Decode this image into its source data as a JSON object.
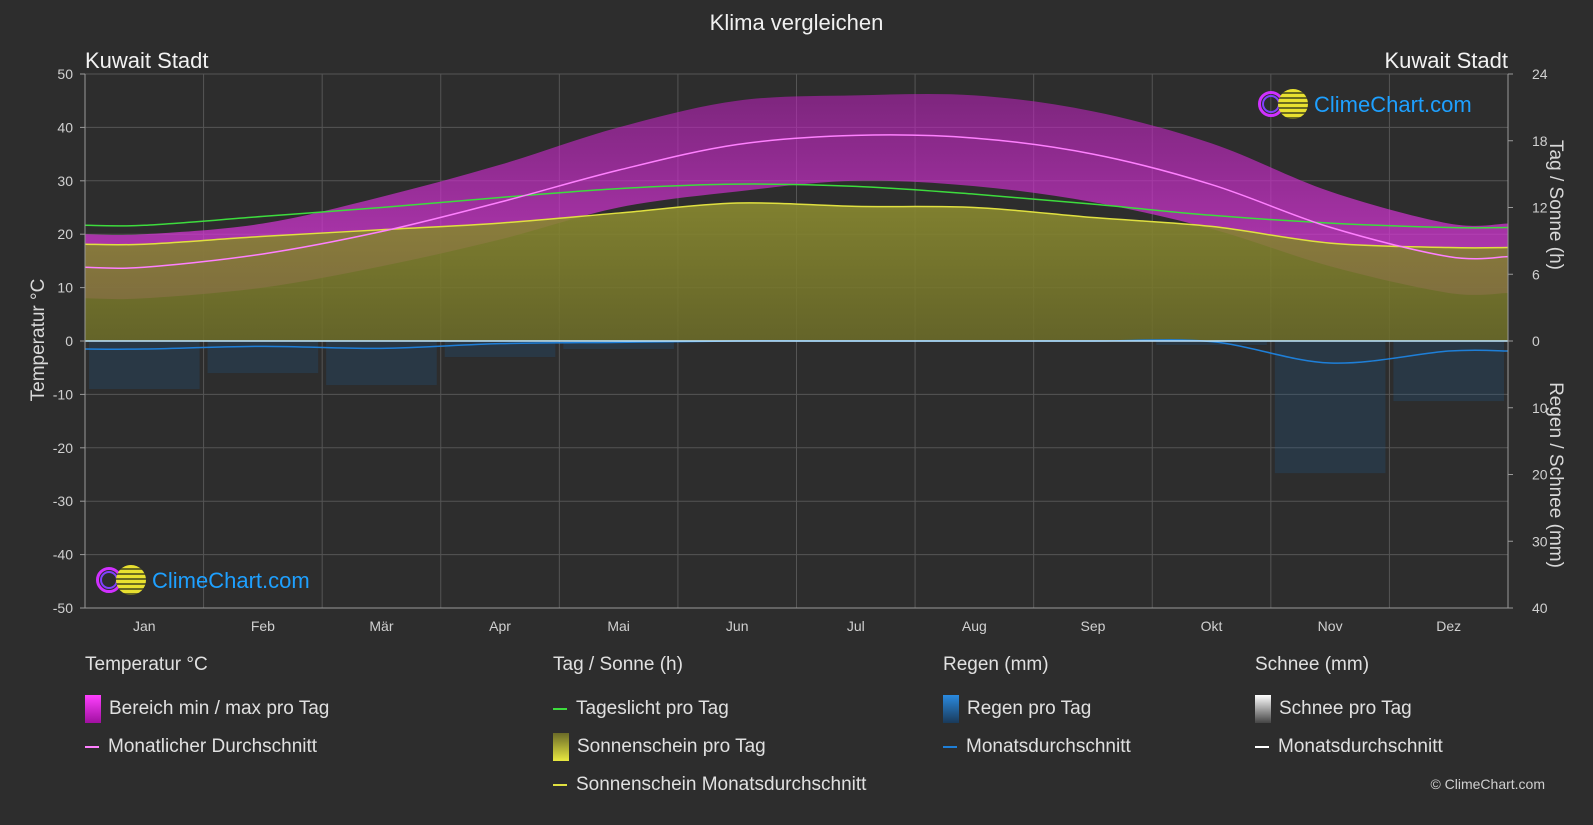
{
  "title": "Klima vergleichen",
  "location_left": "Kuwait Stadt",
  "location_right": "Kuwait Stadt",
  "logo_text": "ClimeChart.com",
  "copyright": "© ClimeChart.com",
  "chart_data": {
    "type": "area",
    "categories": [
      "Jan",
      "Feb",
      "Mär",
      "Apr",
      "Mai",
      "Jun",
      "Jul",
      "Aug",
      "Sep",
      "Okt",
      "Nov",
      "Dez"
    ],
    "y_left": {
      "label": "Temperatur °C",
      "ticks": [
        "50",
        "40",
        "30",
        "20",
        "10",
        "0",
        "-10",
        "-20",
        "-30",
        "-40",
        "-50"
      ],
      "range": [
        -50,
        50
      ]
    },
    "y_right_top": {
      "label": "Tag / Sonne (h)",
      "ticks": [
        "24",
        "18",
        "12",
        "6",
        "0"
      ],
      "range": [
        0,
        24
      ]
    },
    "y_right_bottom": {
      "label": "Regen / Schnee (mm)",
      "ticks": [
        "0",
        "10",
        "20",
        "30",
        "40"
      ],
      "range": [
        0,
        40
      ]
    },
    "grid": true,
    "series": [
      {
        "name": "Tageslicht pro Tag",
        "unit": "h",
        "values": [
          10.4,
          11.2,
          12.0,
          12.9,
          13.7,
          14.1,
          13.9,
          13.2,
          12.3,
          11.3,
          10.6,
          10.2
        ]
      },
      {
        "name": "Sonnenschein Monatsdurchschnitt",
        "unit": "h",
        "values": [
          8.7,
          9.4,
          10.0,
          10.6,
          11.5,
          12.4,
          12.1,
          12.0,
          11.1,
          10.3,
          8.8,
          8.4
        ]
      },
      {
        "name": "Monatlicher Durchschnitt",
        "unit": "°C",
        "values": [
          13.8,
          16.3,
          20.5,
          26.0,
          32.0,
          36.8,
          38.5,
          38.0,
          35.0,
          29.3,
          21.3,
          15.8
        ]
      },
      {
        "name": "Bereich min / max pro Tag",
        "unit": "°C",
        "min": [
          8,
          10,
          14,
          19,
          25,
          28,
          30,
          29,
          26,
          21,
          14,
          9
        ],
        "max": [
          20,
          22,
          27,
          33,
          40,
          45,
          46,
          46,
          43,
          37,
          28,
          22
        ]
      },
      {
        "name": "Regen Monatsdurchschnitt",
        "unit": "mm",
        "values": [
          1.2,
          0.8,
          1.1,
          0.4,
          0.2,
          0.0,
          0.0,
          0.0,
          0.0,
          0.1,
          3.3,
          1.5
        ]
      }
    ]
  },
  "legend": {
    "temp": {
      "title": "Temperatur °C",
      "items": [
        "Bereich min / max pro Tag",
        "Monatlicher Durchschnitt"
      ]
    },
    "sun": {
      "title": "Tag / Sonne (h)",
      "items": [
        "Tageslicht pro Tag",
        "Sonnenschein pro Tag",
        "Sonnenschein Monatsdurchschnitt"
      ]
    },
    "rain": {
      "title": "Regen (mm)",
      "items": [
        "Regen pro Tag",
        "Monatsdurchschnitt"
      ]
    },
    "snow": {
      "title": "Schnee (mm)",
      "items": [
        "Schnee pro Tag",
        "Monatsdurchschnitt"
      ]
    }
  },
  "colors": {
    "daylight": "#3ddc3d",
    "sunshine_avg": "#e0e040",
    "sunshine_area": "#8a8a30",
    "temp_avg": "#ff80ff",
    "temp_range": "#d020d0",
    "rain": "#1e7fd8",
    "snow": "#ffffff"
  }
}
